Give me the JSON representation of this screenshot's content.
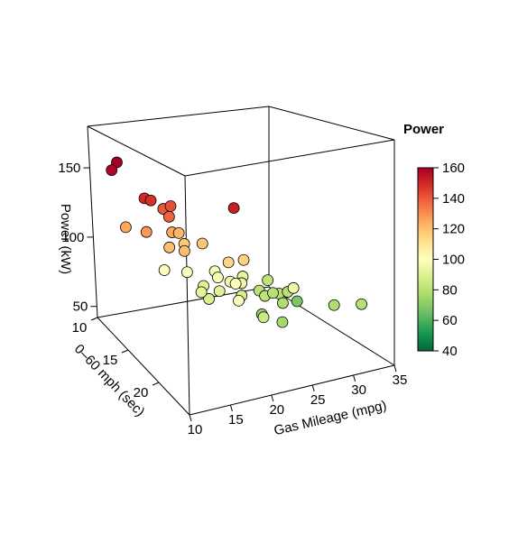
{
  "chart_data": {
    "type": "scatter3d",
    "x_label": "Gas Mileage (mpg)",
    "y_label": "0–60 mph (sec)",
    "z_label": "Power (kW)",
    "colorbar_title": "Power",
    "xlim": [
      10,
      35
    ],
    "xticks": [
      10,
      15,
      20,
      25,
      30,
      35
    ],
    "ylim": [
      10,
      25
    ],
    "yticks": [
      10,
      15,
      20
    ],
    "zlim": [
      42,
      180
    ],
    "zticks": [
      50,
      100,
      150
    ],
    "clim": [
      40,
      160
    ],
    "cticks": [
      40,
      60,
      80,
      100,
      120,
      140,
      160
    ],
    "colorscale": [
      "#006837",
      "#1a9850",
      "#66bd63",
      "#a6d96a",
      "#d9ef8b",
      "#ffffbf",
      "#fee08b",
      "#fdae61",
      "#f46d43",
      "#d73027",
      "#a50026"
    ],
    "x": [
      11.5,
      10,
      10.6,
      11.4,
      13.3,
      14.0,
      13.1,
      10,
      10.8,
      14.1,
      15.4,
      12.7,
      15.2,
      17.1,
      13.7,
      17,
      13.3,
      15.4,
      18.8,
      17.5,
      19.3,
      18.2,
      19.5,
      22.2,
      17.3,
      18.2,
      16.5,
      15.8,
      20.4,
      26.5,
      24.5,
      23.8,
      26.0,
      27.1,
      25.4,
      25.5,
      24.6,
      29.4,
      20.2,
      17,
      23.1,
      29.9,
      23.1,
      32,
      20,
      18.6
    ],
    "y": [
      12.6,
      13.5,
      17.8,
      17.8,
      17.4,
      17.7,
      18.5,
      15.4,
      17.7,
      17.7,
      17.2,
      18.9,
      18.2,
      18.7,
      20.0,
      23.5,
      17.3,
      18.3,
      18.5,
      22.0,
      22.1,
      19.6,
      19.9,
      18.7,
      18.5,
      19.8,
      20.2,
      19.9,
      20.5,
      17.6,
      18.5,
      20.0,
      19.6,
      19.6,
      20.7,
      19.3,
      23.0,
      18.5,
      20.7,
      24,
      20.3,
      22.7,
      23.1,
      24,
      24,
      21.7
    ],
    "z": [
      160,
      158,
      150,
      148,
      140,
      142,
      138,
      125,
      128,
      125,
      122,
      120,
      118,
      118,
      120,
      152,
      100,
      100,
      98,
      115,
      115,
      98,
      95,
      92,
      90,
      90,
      88,
      92,
      95,
      82,
      80,
      82,
      80,
      80,
      78,
      80,
      95,
      68,
      88,
      98,
      72,
      78,
      76,
      80,
      85,
      100
    ]
  }
}
